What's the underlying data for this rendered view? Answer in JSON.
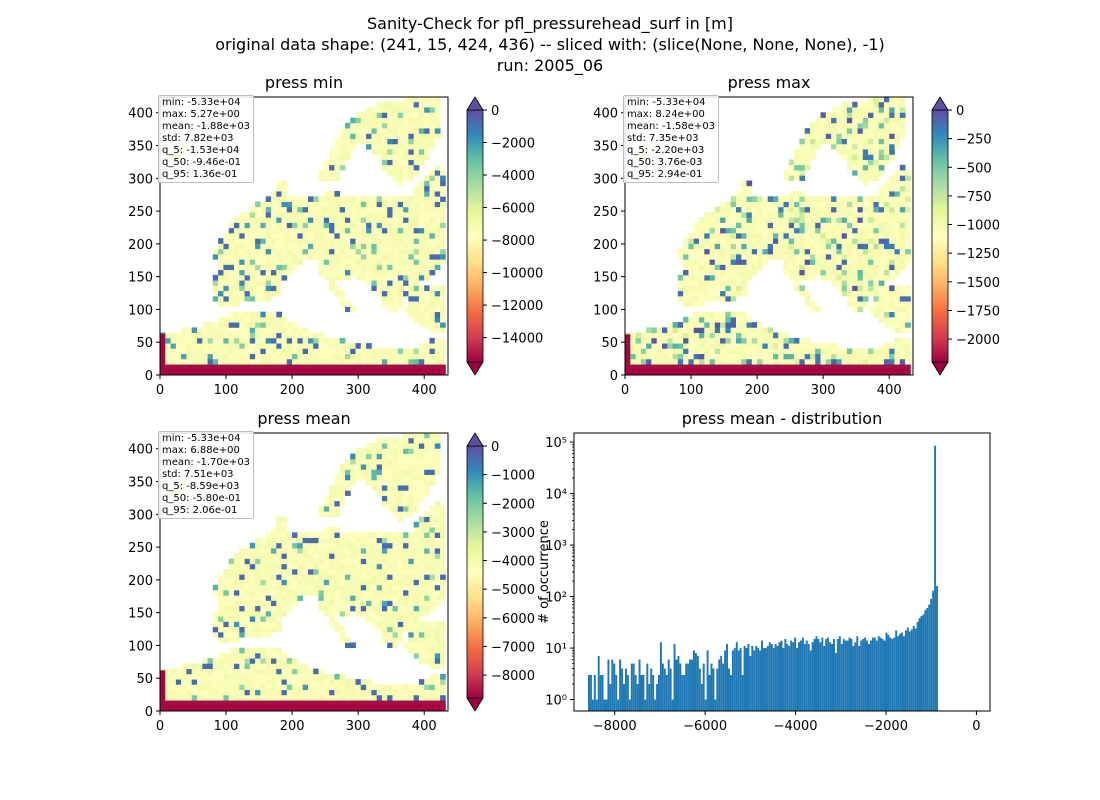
{
  "suptitle": {
    "line1": "Sanity-Check for pfl_pressurehead_surf in [m]",
    "line2": "original data shape: (241, 15, 424, 436) -- sliced with: (slice(None, None, None), -1)",
    "line3": "run: 2005_06"
  },
  "chart_data": [
    {
      "type": "heatmap",
      "title": "press min",
      "xlim": [
        0,
        436
      ],
      "ylim": [
        0,
        424
      ],
      "xticks": [
        0,
        100,
        200,
        300,
        400
      ],
      "yticks": [
        0,
        50,
        100,
        150,
        200,
        250,
        300,
        350,
        400
      ],
      "colormap": "Spectral",
      "colorbar": {
        "min": -15500,
        "max": 0,
        "ticks": [
          0,
          -2000,
          -4000,
          -6000,
          -8000,
          -10000,
          -12000,
          -14000
        ],
        "extend": "both"
      },
      "stats": [
        "min: -5.33e+04",
        "max: 5.27e+00",
        "mean: -1.88e+03",
        "std: 7.82e+03",
        "q_5: -1.53e+04",
        "q_50: -9.46e-01",
        "q_95: 1.36e-01"
      ]
    },
    {
      "type": "heatmap",
      "title": "press max",
      "xlim": [
        0,
        436
      ],
      "ylim": [
        0,
        424
      ],
      "xticks": [
        0,
        100,
        200,
        300,
        400
      ],
      "yticks": [
        0,
        50,
        100,
        150,
        200,
        250,
        300,
        350,
        400
      ],
      "colormap": "Spectral",
      "colorbar": {
        "min": -2200,
        "max": 0,
        "ticks": [
          0,
          -250,
          -500,
          -750,
          -1000,
          -1250,
          -1500,
          -1750,
          -2000
        ],
        "extend": "both"
      },
      "stats": [
        "min: -5.33e+04",
        "max: 8.24e+00",
        "mean: -1.58e+03",
        "std: 7.35e+03",
        "q_5: -2.20e+03",
        "q_50: 3.76e-03",
        "q_95: 2.94e-01"
      ]
    },
    {
      "type": "heatmap",
      "title": "press mean",
      "xlim": [
        0,
        436
      ],
      "ylim": [
        0,
        424
      ],
      "xticks": [
        0,
        100,
        200,
        300,
        400
      ],
      "yticks": [
        0,
        50,
        100,
        150,
        200,
        250,
        300,
        350,
        400
      ],
      "colormap": "Spectral",
      "colorbar": {
        "min": -8800,
        "max": 0,
        "ticks": [
          0,
          -1000,
          -2000,
          -3000,
          -4000,
          -5000,
          -6000,
          -7000,
          -8000
        ],
        "extend": "both"
      },
      "stats": [
        "min: -5.33e+04",
        "max: 6.88e+00",
        "mean: -1.70e+03",
        "std: 7.51e+03",
        "q_5: -8.59e+03",
        "q_50: -5.80e-01",
        "q_95: 2.06e-01"
      ]
    },
    {
      "type": "bar",
      "title": "press mean - distribution",
      "ylabel": "# of occurrence",
      "yscale": "log",
      "xlim": [
        -8900,
        300
      ],
      "ylim": [
        0.6,
        150000
      ],
      "xticks": [
        -8000,
        -6000,
        -4000,
        -2000,
        0
      ],
      "ytick_labels": [
        "10⁰",
        "10¹",
        "10²",
        "10³",
        "10⁴",
        "10⁵"
      ],
      "color": "#1f77b4",
      "bin_start": -8590,
      "bin_width": 43,
      "values": [
        3,
        3,
        1,
        3,
        1,
        7,
        3,
        3,
        1,
        1,
        6,
        2,
        6,
        5,
        3,
        1,
        6,
        4,
        2,
        4,
        3,
        1,
        5,
        5,
        3,
        2,
        6,
        3,
        3,
        1,
        5,
        2,
        4,
        3,
        1,
        2,
        3,
        13,
        5,
        4,
        3,
        6,
        4,
        1,
        12,
        6,
        7,
        5,
        3,
        3,
        5,
        5,
        6,
        6,
        9,
        8,
        7,
        4,
        2,
        5,
        1,
        9,
        3,
        5,
        4,
        1,
        4,
        6,
        7,
        5,
        9,
        12,
        4,
        3,
        9,
        10,
        13,
        9,
        10,
        3,
        11,
        10,
        12,
        7,
        11,
        9,
        11,
        10,
        9,
        14,
        10,
        10,
        11,
        13,
        12,
        10,
        12,
        11,
        13,
        14,
        10,
        15,
        12,
        11,
        14,
        13,
        16,
        10,
        13,
        14,
        16,
        12,
        14,
        12,
        9,
        13,
        15,
        17,
        15,
        13,
        16,
        11,
        15,
        16,
        13,
        12,
        15,
        8,
        15,
        17,
        12,
        15,
        14,
        14,
        16,
        15,
        11,
        13,
        17,
        11,
        14,
        15,
        16,
        14,
        12,
        14,
        16,
        16,
        14,
        17,
        16,
        15,
        14,
        20,
        18,
        16,
        15,
        16,
        22,
        17,
        19,
        20,
        17,
        22,
        25,
        21,
        23,
        27,
        24,
        32,
        38,
        42,
        45,
        55,
        60,
        70,
        90,
        130,
        85000,
        160
      ]
    }
  ]
}
